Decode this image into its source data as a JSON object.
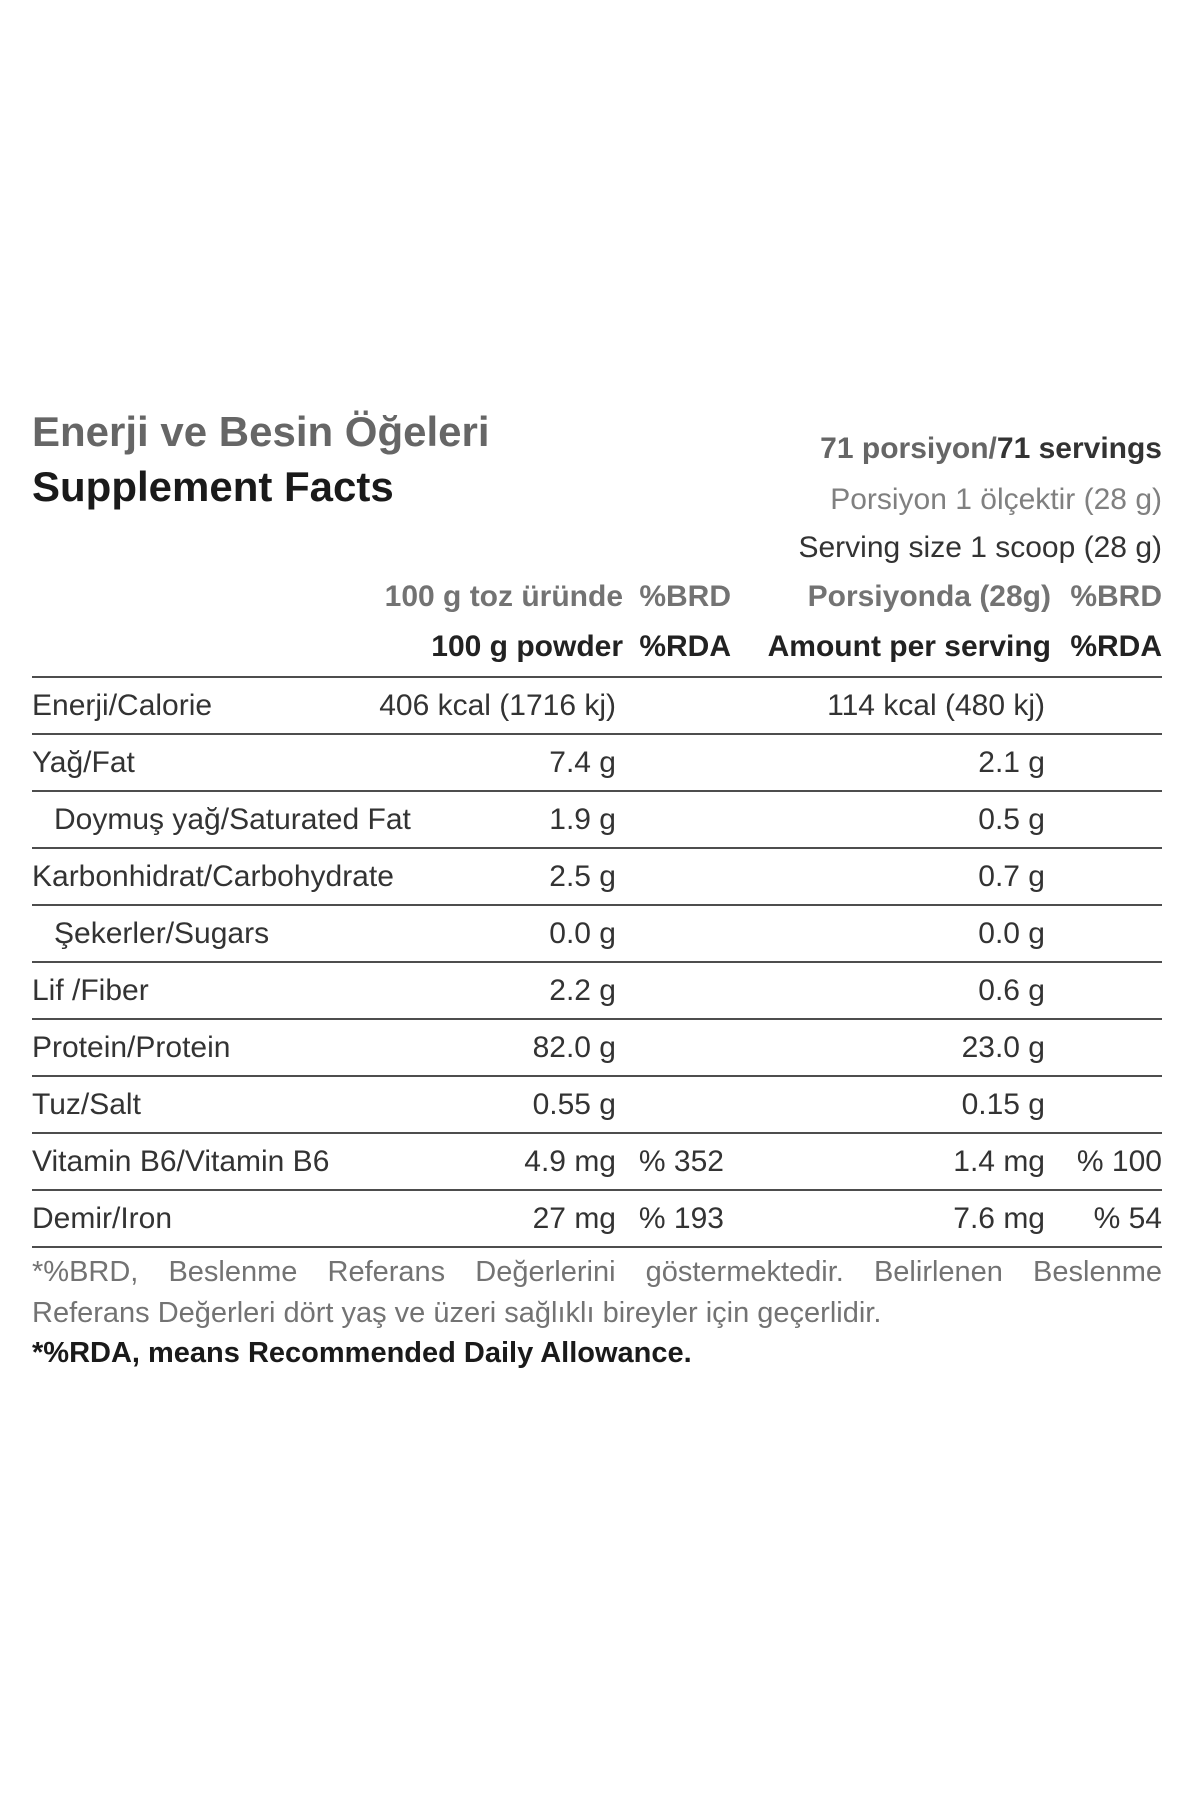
{
  "header": {
    "title_tr": "Enerji ve Besin Öğeleri",
    "title_en": "Supplement Facts",
    "servings_tr": "71 porsiyon/",
    "servings_en": "71 servings",
    "serving_size_tr": "Porsiyon 1 ölçektir (28 g)",
    "serving_size_en": "Serving size 1 scoop (28 g)"
  },
  "columns": {
    "per100_tr": "100 g toz üründe",
    "brd_1": "%BRD",
    "serving_tr": "Porsiyonda (28g)",
    "brd_2": "%BRD",
    "per100_en": "100 g powder",
    "rda_1": "%RDA",
    "serving_en": "Amount per serving",
    "rda_2": "%RDA"
  },
  "rows": [
    {
      "label": "Enerji/Calorie",
      "per100": "406 kcal (1716 kj)",
      "pct100": "",
      "serving": "114 kcal (480 kj)",
      "pctServing": ""
    },
    {
      "label": "Yağ/Fat",
      "per100": "7.4 g",
      "pct100": "",
      "serving": "2.1 g",
      "pctServing": ""
    },
    {
      "label": "Doymuş yağ/Saturated Fat",
      "per100": "1.9 g",
      "pct100": "",
      "serving": "0.5 g",
      "pctServing": ""
    },
    {
      "label": "Karbonhidrat/Carbohydrate",
      "per100": "2.5 g",
      "pct100": "",
      "serving": "0.7 g",
      "pctServing": ""
    },
    {
      "label": "Şekerler/Sugars",
      "per100": "0.0 g",
      "pct100": "",
      "serving": "0.0 g",
      "pctServing": ""
    },
    {
      "label": "Lif /Fiber",
      "per100": "2.2 g",
      "pct100": "",
      "serving": "0.6 g",
      "pctServing": ""
    },
    {
      "label": "Protein/Protein",
      "per100": "82.0 g",
      "pct100": "",
      "serving": "23.0 g",
      "pctServing": ""
    },
    {
      "label": "Tuz/Salt",
      "per100": "0.55 g",
      "pct100": "",
      "serving": "0.15 g",
      "pctServing": ""
    },
    {
      "label": "Vitamin B6/Vitamin B6",
      "per100": "4.9 mg",
      "pct100": "% 352",
      "serving": "1.4 mg",
      "pctServing": "% 100"
    },
    {
      "label": "Demir/Iron",
      "per100": "27 mg",
      "pct100": "% 193",
      "serving": "7.6 mg",
      "pctServing": "% 54"
    }
  ],
  "footnote": {
    "line1": "*%BRD, Beslenme Referans Değerlerini göstermektedir. Belirlenen Beslenme",
    "line2": "Referans Değerleri dört yaş ve üzeri sağlıklı bireyler için geçerlidir.",
    "line3": "*%RDA, means Recommended Daily Allowance."
  }
}
